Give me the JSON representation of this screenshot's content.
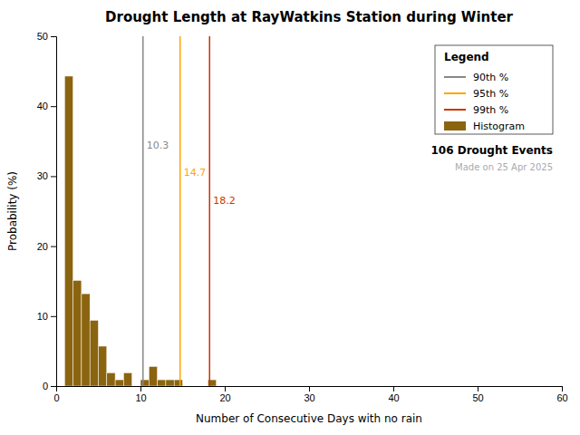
{
  "chart_data": {
    "type": "histogram",
    "title": "Drought Length at RayWatkins Station during Winter",
    "x_label": "Number of Consecutive Days with no rain",
    "y_label": "Probability (%)",
    "xlim": [
      0,
      60
    ],
    "ylim": [
      0,
      50
    ],
    "xticks": [
      0,
      10,
      20,
      30,
      40,
      50,
      60
    ],
    "yticks": [
      0,
      10,
      20,
      30,
      40,
      50
    ],
    "grid": false,
    "legend": "upper right",
    "legend_title": "Legend",
    "series": [
      {
        "name": "90th %",
        "type": "vline",
        "color": "#888888",
        "x": [
          10.3
        ]
      },
      {
        "name": "95th %",
        "type": "vline",
        "color": "#FFA500",
        "x": [
          14.7
        ]
      },
      {
        "name": "99th %",
        "type": "vline",
        "color": "#CC3300",
        "x": [
          18.2
        ]
      },
      {
        "name": "Histogram",
        "type": "histogram",
        "color": "#8B6410",
        "bins": [
          1,
          2,
          3,
          4,
          5,
          6,
          7,
          8,
          9,
          10,
          11,
          12,
          13,
          14,
          15,
          16,
          17,
          18,
          19,
          20,
          21
        ],
        "values": [
          44.3,
          15.1,
          13.2,
          9.4,
          5.7,
          1.9,
          0.9,
          1.9,
          0.0,
          0.9,
          2.8,
          0.9,
          0.9,
          0.9,
          0.0,
          0.0,
          0.0,
          0.9,
          0.0,
          0.0
        ]
      }
    ],
    "annotations": [
      {
        "text": "106 Drought Events"
      },
      {
        "text": "Made on 25 Apr 2025",
        "color": "#AAAAAA"
      }
    ]
  }
}
